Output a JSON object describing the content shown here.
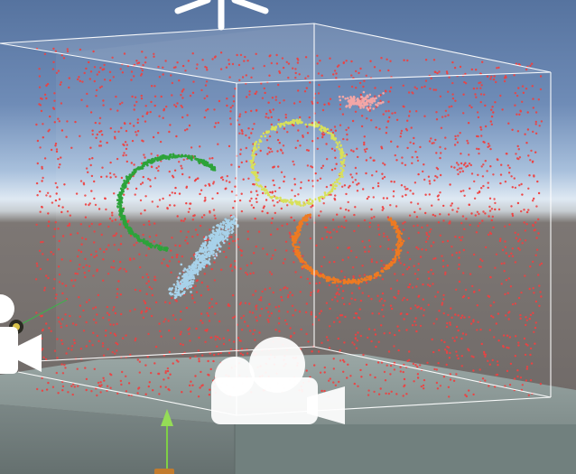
{
  "scene": {
    "skybox": {
      "top_color": "#5a79a6",
      "mid_color": "#a9c1de",
      "horizon_color": "#e6eef5",
      "ground_color": "#6e6a68"
    },
    "colors": {
      "bounds_wireframe": "#ffffff",
      "platform_top": "#8f9c9a",
      "platform_side": "#6f7b7a",
      "particles_ambient": "#ee4141",
      "cluster_green": "#2da33a",
      "cluster_yellow": "#d8e05a",
      "cluster_orange": "#ee7a22",
      "cluster_lightblue": "#a8d2ea",
      "cluster_pink": "#f3a6a6",
      "y_axis_arrow": "#8fd24a",
      "camera_gizmo": "#ffffff"
    },
    "icons": {
      "light_gizmo": "directional-light-icon",
      "camera_gizmo_main": "camera-icon",
      "camera_gizmo_side": "camera-icon",
      "transform_gizmo": "transform-arrow-icon",
      "audio_gizmo": "audio-source-icon"
    }
  }
}
